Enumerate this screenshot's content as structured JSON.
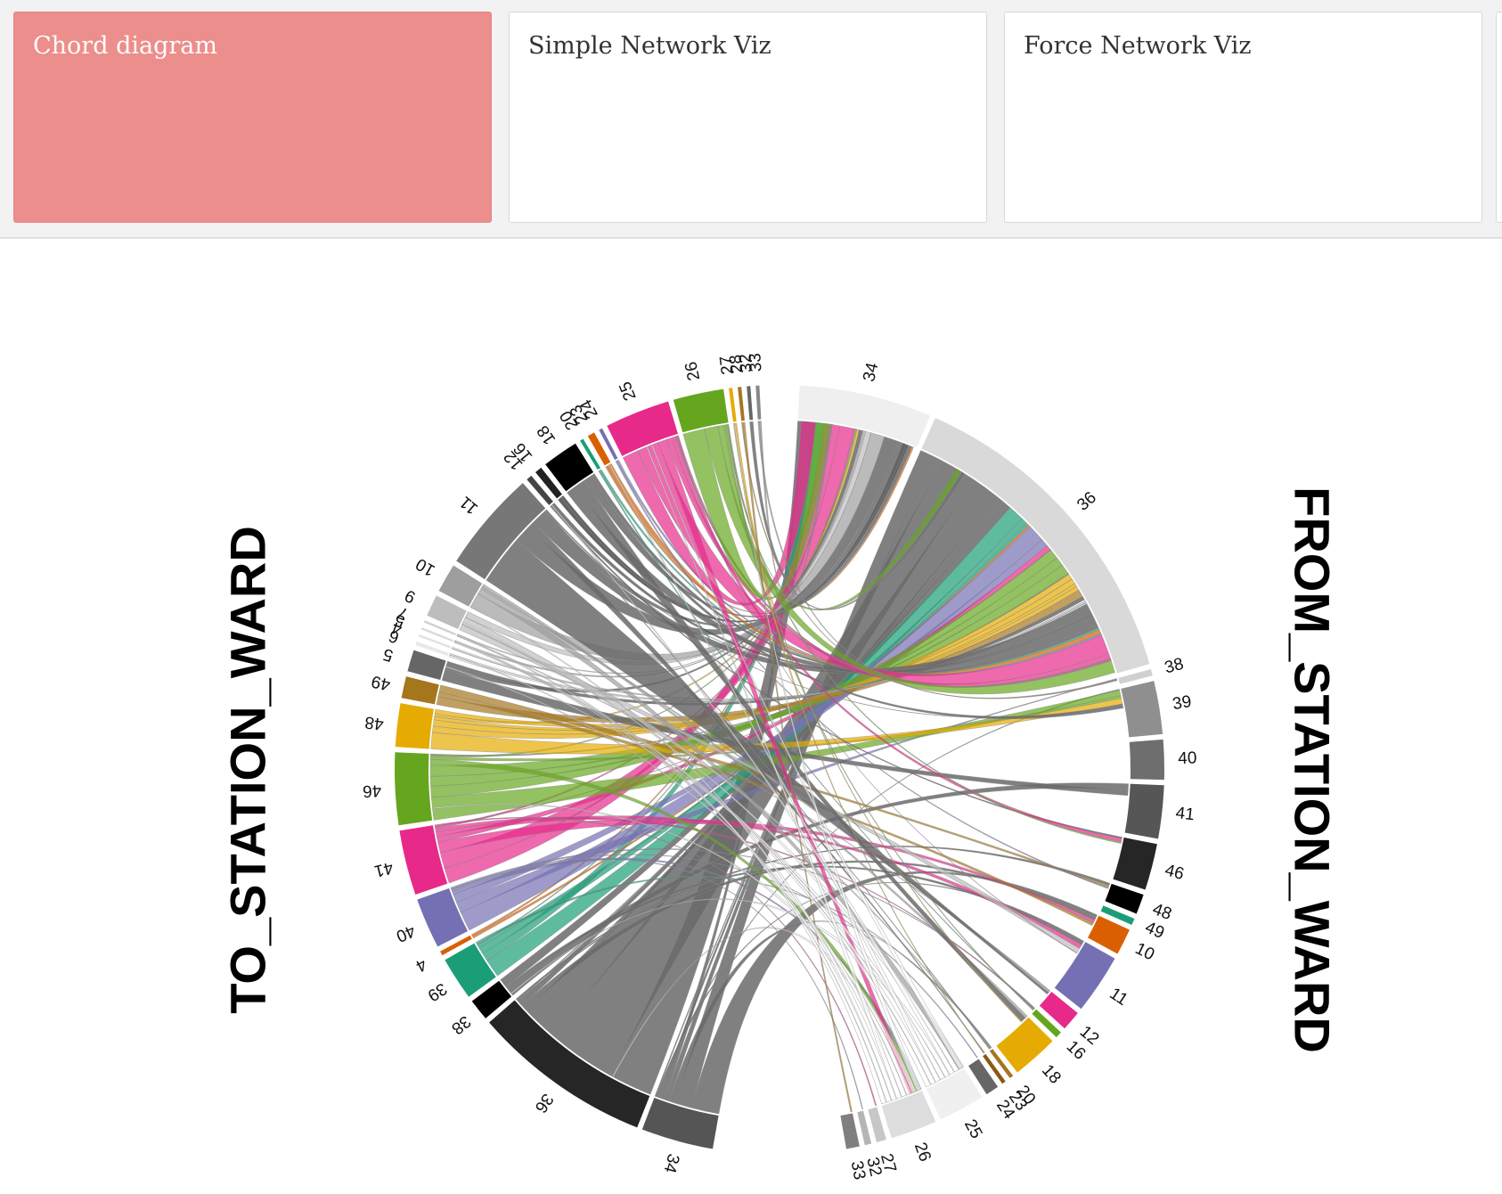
{
  "tabs": [
    {
      "label": "Chord diagram",
      "active": true
    },
    {
      "label": "Simple Network Viz",
      "active": false
    },
    {
      "label": "Force Network Viz",
      "active": false
    }
  ],
  "diagram": {
    "right_title": "FROM_STATION_WARD",
    "left_title": "TO_STATION_WARD"
  },
  "from_wards": [
    {
      "label": "34",
      "value": 20,
      "color": "#efefef"
    },
    {
      "label": "36",
      "value": 50,
      "color": "#d9d9d9"
    },
    {
      "label": "38",
      "value": 1,
      "color": "#d0d0d0"
    },
    {
      "label": "39",
      "value": 8,
      "color": "#8f8f8f"
    },
    {
      "label": "40",
      "value": 6,
      "color": "#6e6e6e"
    },
    {
      "label": "41",
      "value": 8,
      "color": "#565656"
    },
    {
      "label": "46",
      "value": 7,
      "color": "#262626"
    },
    {
      "label": "48",
      "value": 3,
      "color": "#000000"
    },
    {
      "label": "49",
      "value": 1,
      "color": "#1b9e77"
    },
    {
      "label": "10",
      "value": 4,
      "color": "#d95f02"
    },
    {
      "label": "11",
      "value": 9,
      "color": "#7570b3"
    },
    {
      "label": "12",
      "value": 3,
      "color": "#e7298a"
    },
    {
      "label": "16",
      "value": 1,
      "color": "#66a61e"
    },
    {
      "label": "18",
      "value": 7,
      "color": "#e6ab02"
    },
    {
      "label": "20",
      "value": 0.6,
      "color": "#a6761d"
    },
    {
      "label": "23",
      "value": 0.6,
      "color": "#8a5a16"
    },
    {
      "label": "24",
      "value": 2,
      "color": "#666666"
    },
    {
      "label": "25",
      "value": 7,
      "color": "#f0f0f0"
    },
    {
      "label": "26",
      "value": 7,
      "color": "#dddddd"
    },
    {
      "label": "27",
      "value": 1.5,
      "color": "#c7c7c7"
    },
    {
      "label": "32",
      "value": 1,
      "color": "#b5b5b5"
    },
    {
      "label": "33",
      "value": 2,
      "color": "#7f7f7f"
    }
  ],
  "to_wards": [
    {
      "label": "34",
      "value": 10,
      "color": "#555555"
    },
    {
      "label": "36",
      "value": 25,
      "color": "#262626"
    },
    {
      "label": "38",
      "value": 3,
      "color": "#000000"
    },
    {
      "label": "39",
      "value": 6,
      "color": "#1b9e77"
    },
    {
      "label": "4",
      "value": 0.6,
      "color": "#d95f02"
    },
    {
      "label": "40",
      "value": 7,
      "color": "#7570b3"
    },
    {
      "label": "41",
      "value": 9,
      "color": "#e7298a"
    },
    {
      "label": "46",
      "value": 10,
      "color": "#66a61e"
    },
    {
      "label": "48",
      "value": 6,
      "color": "#e6ab02"
    },
    {
      "label": "49",
      "value": 3,
      "color": "#a6761d"
    },
    {
      "label": "5",
      "value": 3,
      "color": "#666666"
    },
    {
      "label": "6",
      "value": 0.5,
      "color": "#e8e8e8"
    },
    {
      "label": "4",
      "value": 0.3,
      "color": "#e0e0e0"
    },
    {
      "label": "5",
      "value": 0.3,
      "color": "#d8d8d8"
    },
    {
      "label": "7",
      "value": 0.3,
      "color": "#d0d0d0"
    },
    {
      "label": "9",
      "value": 3,
      "color": "#bdbdbd"
    },
    {
      "label": "10",
      "value": 4,
      "color": "#9e9e9e"
    },
    {
      "label": "11",
      "value": 14,
      "color": "#777777"
    },
    {
      "label": "12",
      "value": 0.8,
      "color": "#444444"
    },
    {
      "label": "16",
      "value": 1,
      "color": "#222222"
    },
    {
      "label": "18",
      "value": 5,
      "color": "#000000"
    },
    {
      "label": "20",
      "value": 0.5,
      "color": "#1b9e77"
    },
    {
      "label": "23",
      "value": 1,
      "color": "#d95f02"
    },
    {
      "label": "24",
      "value": 0.5,
      "color": "#7570b3"
    },
    {
      "label": "25",
      "value": 9,
      "color": "#e7298a"
    },
    {
      "label": "26",
      "value": 7,
      "color": "#66a61e"
    },
    {
      "label": "27",
      "value": 0.5,
      "color": "#e6ab02"
    },
    {
      "label": "28",
      "value": 0.5,
      "color": "#a6761d"
    },
    {
      "label": "32",
      "value": 0.5,
      "color": "#666666"
    },
    {
      "label": "33",
      "value": 0.5,
      "color": "#888888"
    }
  ]
}
